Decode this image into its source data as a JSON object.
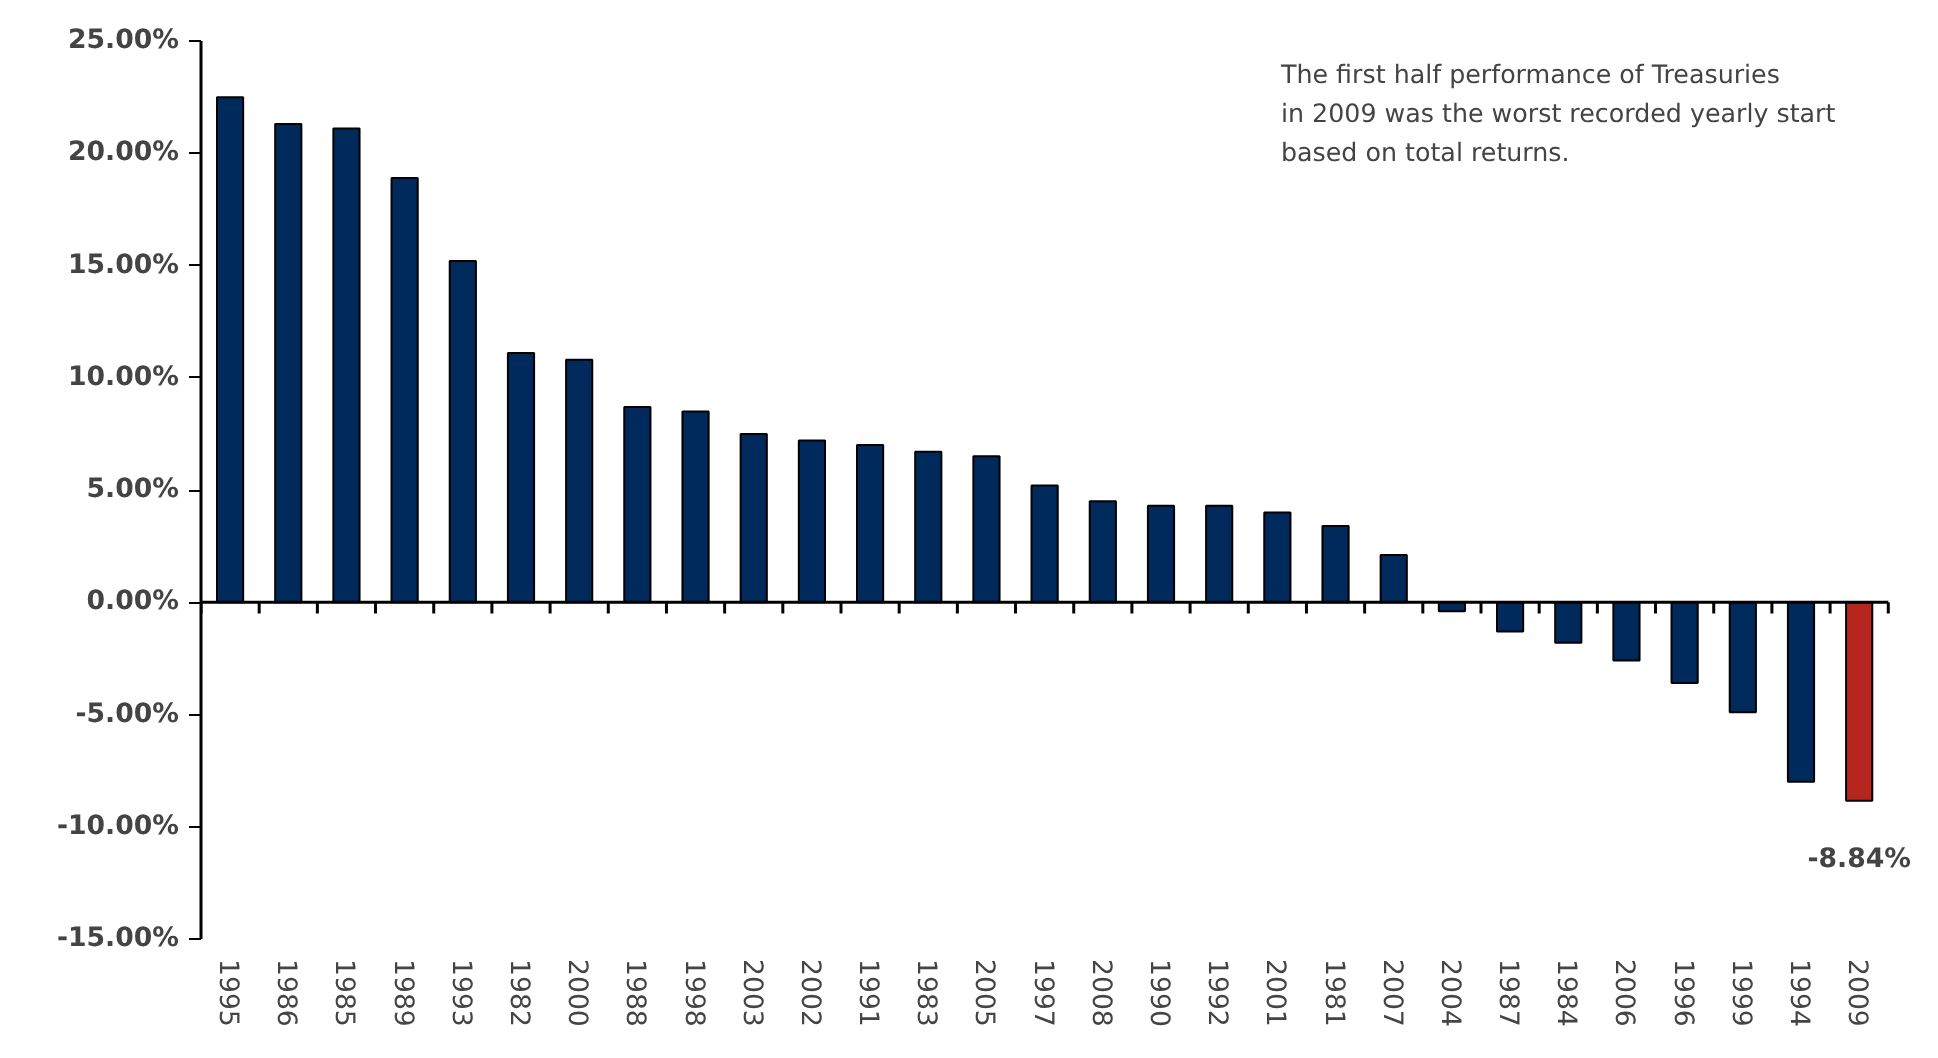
{
  "chart_data": {
    "type": "bar",
    "categories": [
      "1995",
      "1986",
      "1985",
      "1989",
      "1993",
      "1982",
      "2000",
      "1988",
      "1998",
      "2003",
      "2002",
      "1991",
      "1983",
      "2005",
      "1997",
      "2008",
      "1990",
      "1992",
      "2001",
      "1981",
      "2007",
      "2004",
      "1987",
      "1984",
      "2006",
      "1996",
      "1999",
      "1994",
      "2009"
    ],
    "values": [
      22.5,
      21.3,
      21.1,
      18.9,
      15.2,
      11.1,
      10.8,
      8.7,
      8.5,
      7.5,
      7.2,
      7.0,
      6.7,
      6.5,
      5.2,
      4.5,
      4.3,
      4.3,
      4.0,
      3.4,
      2.1,
      -0.4,
      -1.3,
      -1.8,
      -2.6,
      -3.6,
      -4.9,
      -8.0,
      -8.84
    ],
    "colors": [
      "#002a5c",
      "#002a5c",
      "#002a5c",
      "#002a5c",
      "#002a5c",
      "#002a5c",
      "#002a5c",
      "#002a5c",
      "#002a5c",
      "#002a5c",
      "#002a5c",
      "#002a5c",
      "#002a5c",
      "#002a5c",
      "#002a5c",
      "#002a5c",
      "#002a5c",
      "#002a5c",
      "#002a5c",
      "#002a5c",
      "#002a5c",
      "#002a5c",
      "#002a5c",
      "#002a5c",
      "#002a5c",
      "#002a5c",
      "#002a5c",
      "#002a5c",
      "#b5271e"
    ],
    "value_labels": [
      null,
      null,
      null,
      null,
      null,
      null,
      null,
      null,
      null,
      null,
      null,
      null,
      null,
      null,
      null,
      null,
      null,
      null,
      null,
      null,
      null,
      null,
      null,
      null,
      null,
      null,
      null,
      null,
      "-8.84%"
    ],
    "ylim": [
      -15,
      25
    ],
    "yticks": [
      {
        "value": -15,
        "label": "-15.00%"
      },
      {
        "value": -10,
        "label": "-10.00%"
      },
      {
        "value": -5,
        "label": "-5.00%"
      },
      {
        "value": 0,
        "label": "0.00%"
      },
      {
        "value": 5,
        "label": "5.00%"
      },
      {
        "value": 10,
        "label": "10.00%"
      },
      {
        "value": 15,
        "label": "15.00%"
      },
      {
        "value": 20,
        "label": "20.00%"
      },
      {
        "value": 25,
        "label": "25.00%"
      }
    ],
    "annotations": [
      "The first half performance of Treasuries\nin 2009 was the worst recorded yearly start\nbased on total returns."
    ]
  }
}
